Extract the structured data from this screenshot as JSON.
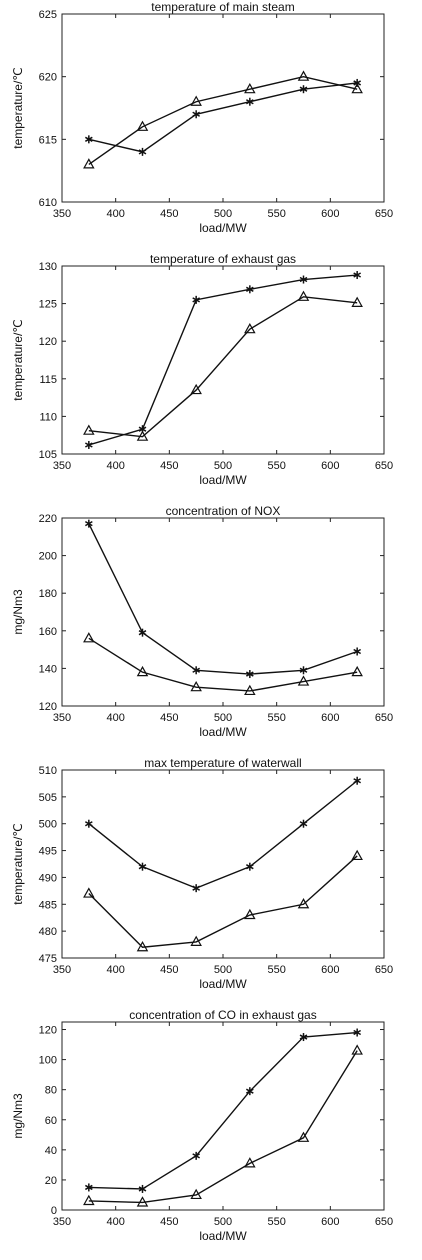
{
  "chart_data": [
    {
      "type": "line",
      "title": "temperature of main steam",
      "xlabel": "load/MW",
      "ylabel": "temperature/℃",
      "x": [
        375,
        425,
        475,
        525,
        575,
        625
      ],
      "xlim": [
        350,
        650
      ],
      "xticks": [
        350,
        400,
        450,
        500,
        550,
        600,
        650
      ],
      "ylim": [
        610,
        625
      ],
      "yticks": [
        610,
        615,
        620,
        625
      ],
      "grid": false,
      "series": [
        {
          "marker": "star",
          "values": [
            615,
            614,
            617,
            618,
            619,
            619.5
          ]
        },
        {
          "marker": "triangle",
          "values": [
            613,
            616,
            618,
            619,
            620,
            619
          ]
        }
      ]
    },
    {
      "type": "line",
      "title": "temperature of exhaust gas",
      "xlabel": "load/MW",
      "ylabel": "temperature/℃",
      "x": [
        375,
        425,
        475,
        525,
        575,
        625
      ],
      "xlim": [
        350,
        650
      ],
      "xticks": [
        350,
        400,
        450,
        500,
        550,
        600,
        650
      ],
      "ylim": [
        105,
        130
      ],
      "yticks": [
        105,
        110,
        115,
        120,
        125,
        130
      ],
      "grid": false,
      "series": [
        {
          "marker": "star",
          "values": [
            106.2,
            108.3,
            125.5,
            126.9,
            128.2,
            128.8
          ]
        },
        {
          "marker": "triangle",
          "values": [
            108.1,
            107.3,
            113.5,
            121.6,
            125.9,
            125.1
          ]
        }
      ]
    },
    {
      "type": "line",
      "title": "concentration of NOX",
      "xlabel": "load/MW",
      "ylabel": "mg/Nm3",
      "x": [
        375,
        425,
        475,
        525,
        575,
        625
      ],
      "xlim": [
        350,
        650
      ],
      "xticks": [
        350,
        400,
        450,
        500,
        550,
        600,
        650
      ],
      "ylim": [
        120,
        220
      ],
      "yticks": [
        120,
        140,
        160,
        180,
        200,
        220
      ],
      "grid": false,
      "series": [
        {
          "marker": "star",
          "values": [
            217,
            159,
            139,
            137,
            139,
            149
          ]
        },
        {
          "marker": "triangle",
          "values": [
            156,
            138,
            130,
            128,
            133,
            138
          ]
        }
      ]
    },
    {
      "type": "line",
      "title": "max temperature of waterwall",
      "xlabel": "load/MW",
      "ylabel": "temperature/℃",
      "x": [
        375,
        425,
        475,
        525,
        575,
        625
      ],
      "xlim": [
        350,
        650
      ],
      "xticks": [
        350,
        400,
        450,
        500,
        550,
        600,
        650
      ],
      "ylim": [
        475,
        510
      ],
      "yticks": [
        475,
        480,
        485,
        490,
        495,
        500,
        505,
        510
      ],
      "grid": false,
      "series": [
        {
          "marker": "star",
          "values": [
            500,
            492,
            488,
            492,
            500,
            508
          ]
        },
        {
          "marker": "triangle",
          "values": [
            487,
            477,
            478,
            483,
            485,
            494
          ]
        }
      ]
    },
    {
      "type": "line",
      "title": "concentration of CO in exhaust gas",
      "xlabel": "load/MW",
      "ylabel": "mg/Nm3",
      "x": [
        375,
        425,
        475,
        525,
        575,
        625
      ],
      "xlim": [
        350,
        650
      ],
      "xticks": [
        350,
        400,
        450,
        500,
        550,
        600,
        650
      ],
      "ylim": [
        0,
        125
      ],
      "yticks": [
        0,
        20,
        40,
        60,
        80,
        100,
        120
      ],
      "grid": false,
      "series": [
        {
          "marker": "star",
          "values": [
            15,
            14,
            36,
            79,
            115,
            118
          ]
        },
        {
          "marker": "triangle",
          "values": [
            6,
            5,
            10,
            31,
            48,
            106
          ]
        }
      ]
    }
  ]
}
